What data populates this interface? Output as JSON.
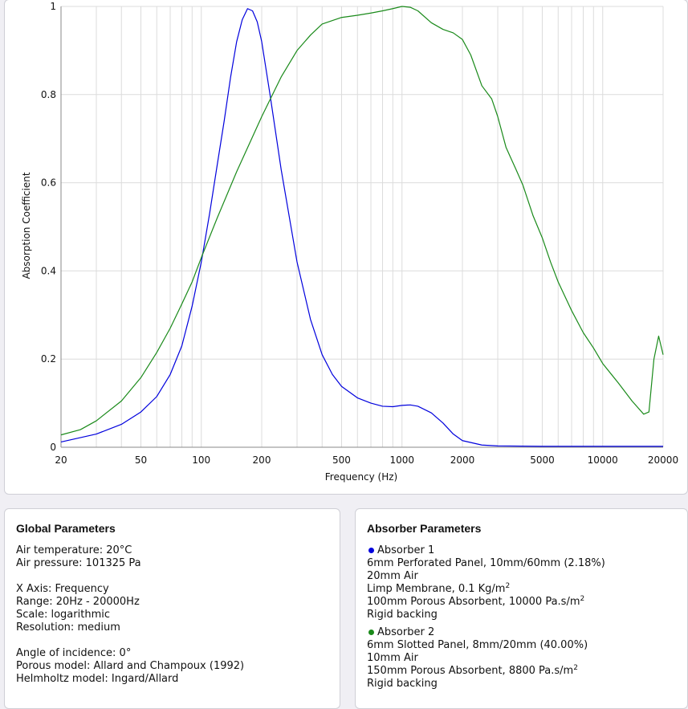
{
  "chart_data": {
    "type": "line",
    "xlabel": "Frequency (Hz)",
    "ylabel": "Absorption Coefficient",
    "x_scale": "log",
    "xlim": [
      20,
      20000
    ],
    "ylim": [
      0,
      1
    ],
    "x_ticks": [
      20,
      50,
      100,
      200,
      500,
      1000,
      2000,
      5000,
      10000,
      20000
    ],
    "y_ticks": [
      0,
      0.2,
      0.4,
      0.6,
      0.8,
      1
    ],
    "y_tick_labels": [
      "0",
      "0.2",
      "0.4",
      "0.6",
      "0.8",
      "1"
    ],
    "grid": true,
    "series": [
      {
        "name": "Absorber 1",
        "color": "#0000dd",
        "points": [
          [
            20,
            0.012
          ],
          [
            30,
            0.03
          ],
          [
            40,
            0.052
          ],
          [
            50,
            0.08
          ],
          [
            60,
            0.115
          ],
          [
            70,
            0.165
          ],
          [
            80,
            0.23
          ],
          [
            90,
            0.32
          ],
          [
            100,
            0.42
          ],
          [
            110,
            0.53
          ],
          [
            120,
            0.64
          ],
          [
            130,
            0.74
          ],
          [
            140,
            0.84
          ],
          [
            150,
            0.92
          ],
          [
            160,
            0.97
          ],
          [
            170,
            0.995
          ],
          [
            180,
            0.99
          ],
          [
            190,
            0.965
          ],
          [
            200,
            0.92
          ],
          [
            220,
            0.8
          ],
          [
            250,
            0.63
          ],
          [
            300,
            0.42
          ],
          [
            350,
            0.29
          ],
          [
            400,
            0.21
          ],
          [
            450,
            0.165
          ],
          [
            500,
            0.138
          ],
          [
            600,
            0.112
          ],
          [
            700,
            0.1
          ],
          [
            800,
            0.093
          ],
          [
            900,
            0.092
          ],
          [
            1000,
            0.095
          ],
          [
            1100,
            0.096
          ],
          [
            1200,
            0.093
          ],
          [
            1400,
            0.078
          ],
          [
            1600,
            0.055
          ],
          [
            1800,
            0.03
          ],
          [
            2000,
            0.015
          ],
          [
            2500,
            0.005
          ],
          [
            3000,
            0.003
          ],
          [
            5000,
            0.002
          ],
          [
            10000,
            0.002
          ],
          [
            20000,
            0.002
          ]
        ]
      },
      {
        "name": "Absorber 2",
        "color": "#1a8a1a",
        "points": [
          [
            20,
            0.028
          ],
          [
            25,
            0.04
          ],
          [
            30,
            0.06
          ],
          [
            40,
            0.105
          ],
          [
            50,
            0.158
          ],
          [
            60,
            0.215
          ],
          [
            70,
            0.27
          ],
          [
            80,
            0.325
          ],
          [
            90,
            0.375
          ],
          [
            100,
            0.43
          ],
          [
            120,
            0.52
          ],
          [
            150,
            0.625
          ],
          [
            200,
            0.75
          ],
          [
            250,
            0.84
          ],
          [
            300,
            0.9
          ],
          [
            350,
            0.935
          ],
          [
            400,
            0.96
          ],
          [
            500,
            0.975
          ],
          [
            600,
            0.98
          ],
          [
            700,
            0.985
          ],
          [
            800,
            0.99
          ],
          [
            900,
            0.995
          ],
          [
            1000,
            1.0
          ],
          [
            1100,
            0.998
          ],
          [
            1200,
            0.99
          ],
          [
            1400,
            0.963
          ],
          [
            1600,
            0.948
          ],
          [
            1800,
            0.94
          ],
          [
            2000,
            0.925
          ],
          [
            2200,
            0.89
          ],
          [
            2500,
            0.82
          ],
          [
            2800,
            0.79
          ],
          [
            3000,
            0.75
          ],
          [
            3300,
            0.68
          ],
          [
            3700,
            0.63
          ],
          [
            4000,
            0.595
          ],
          [
            4500,
            0.525
          ],
          [
            5000,
            0.475
          ],
          [
            5500,
            0.42
          ],
          [
            6000,
            0.375
          ],
          [
            7000,
            0.31
          ],
          [
            8000,
            0.26
          ],
          [
            9000,
            0.225
          ],
          [
            10000,
            0.19
          ],
          [
            12000,
            0.145
          ],
          [
            14000,
            0.105
          ],
          [
            16000,
            0.075
          ],
          [
            17000,
            0.08
          ],
          [
            18000,
            0.2
          ],
          [
            19000,
            0.252
          ],
          [
            20000,
            0.21
          ]
        ]
      }
    ]
  },
  "global": {
    "title": "Global Parameters",
    "air_temperature": "Air temperature: 20°C",
    "air_pressure": "Air pressure: 101325 Pa",
    "x_axis": "X Axis: Frequency",
    "range": "Range: 20Hz - 20000Hz",
    "scale": "Scale: logarithmic",
    "resolution": "Resolution: medium",
    "angle": "Angle of incidence: 0°",
    "porous_model": "Porous model: Allard and Champoux (1992)",
    "helmholtz_model": "Helmholtz model: Ingard/Allard"
  },
  "absorbers": {
    "title": "Absorber Parameters",
    "a1": {
      "name": "Absorber 1",
      "color": "#0000dd",
      "l1": "6mm Perforated Panel, 10mm/60mm (2.18%)",
      "l2": "20mm Air",
      "l3": "Limp Membrane, 0.1 Kg/m",
      "l3_sup": "2",
      "l4": "100mm Porous Absorbent, 10000 Pa.s/m",
      "l4_sup": "2",
      "l5": "Rigid backing"
    },
    "a2": {
      "name": "Absorber 2",
      "color": "#1a8a1a",
      "l1": "6mm Slotted Panel, 8mm/20mm (40.00%)",
      "l2": "10mm Air",
      "l3": "150mm Porous Absorbent, 8800 Pa.s/m",
      "l3_sup": "2",
      "l4": "Rigid backing"
    }
  }
}
